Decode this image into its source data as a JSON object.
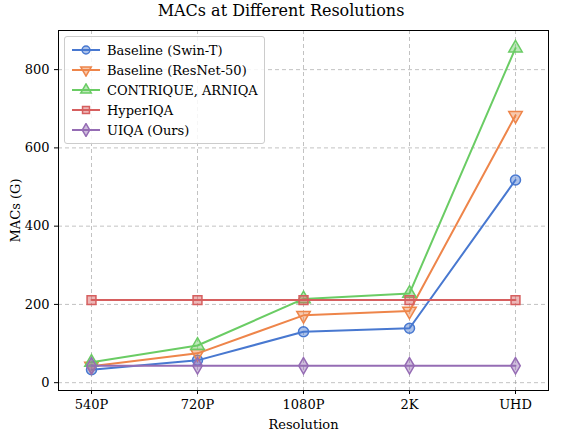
{
  "chart_data": {
    "type": "line",
    "title": "MACs at Different Resolutions",
    "x_label": "Resolution",
    "y_label": "MACs (G)",
    "categories": [
      "540P",
      "720P",
      "1080P",
      "2K",
      "UHD"
    ],
    "series": [
      {
        "name": "Baseline (Swin-T)",
        "color": "#4878d0",
        "marker": "circle",
        "values": [
          33,
          57,
          130,
          139,
          518
        ]
      },
      {
        "name": "Baseline (ResNet-50)",
        "color": "#ee854a",
        "marker": "triangle-down",
        "values": [
          42,
          75,
          172,
          183,
          683
        ]
      },
      {
        "name": "CONTRIQUE, ARNIQA",
        "color": "#6acc64",
        "marker": "triangle-up",
        "values": [
          52,
          95,
          214,
          228,
          855
        ]
      },
      {
        "name": "HyperIQA",
        "color": "#d65f5f",
        "marker": "square",
        "values": [
          211,
          211,
          211,
          211,
          211
        ]
      },
      {
        "name": "UIQA (Ours)",
        "color": "#956cb4",
        "marker": "diamond",
        "values": [
          43,
          43,
          43,
          43,
          43
        ]
      }
    ],
    "ylim": [
      -20,
      900
    ],
    "yticks": [
      0,
      200,
      400,
      600,
      800
    ],
    "grid": true,
    "legend": "upper left"
  }
}
